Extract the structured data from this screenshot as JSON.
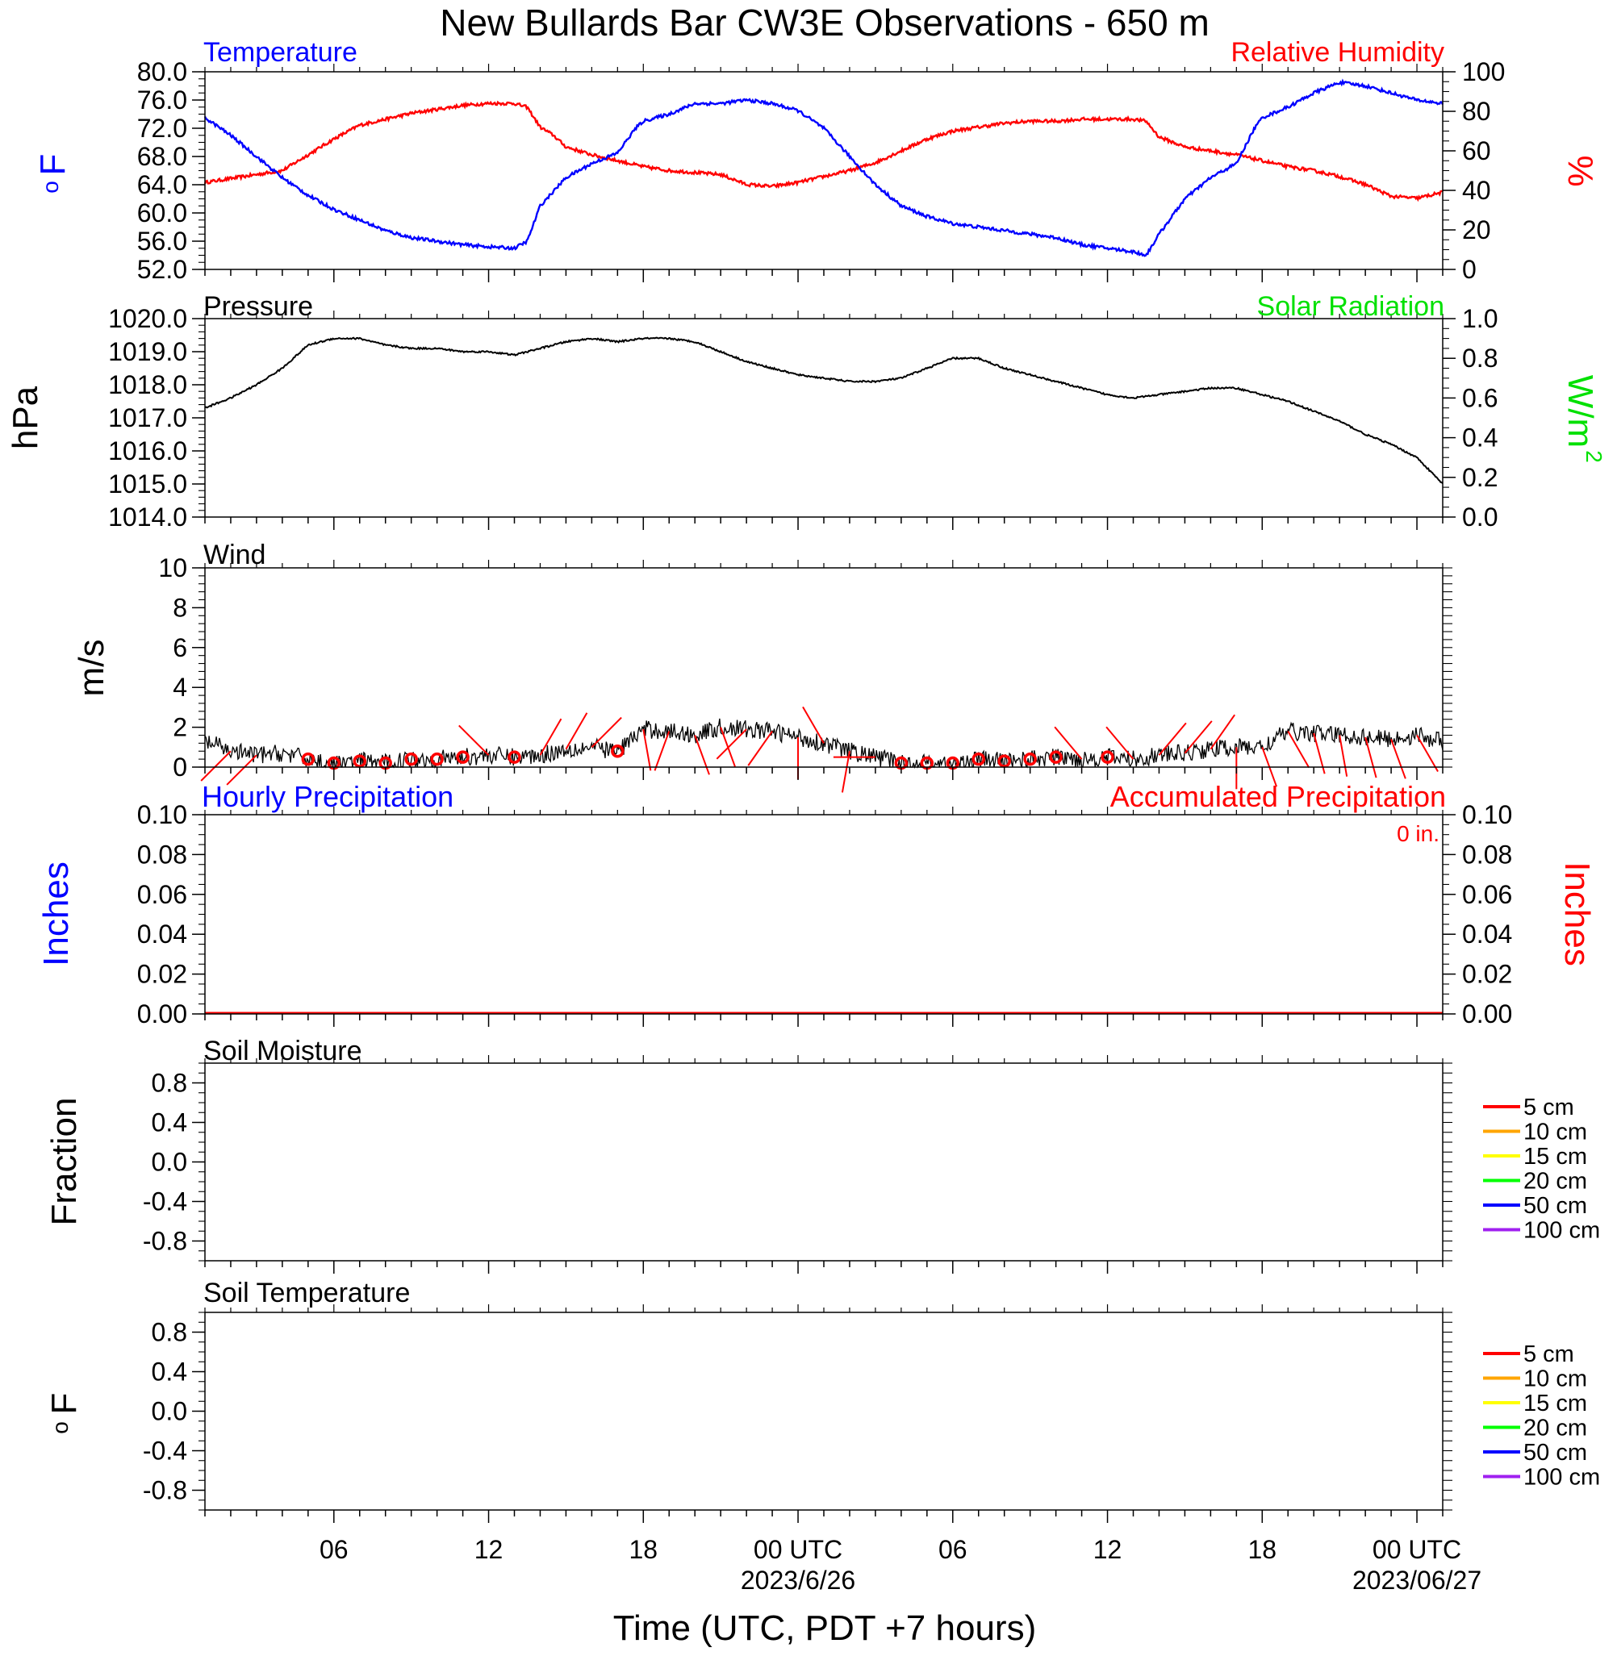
{
  "title": "New Bullards Bar CW3E Observations - 650 m",
  "xaxis": {
    "label": "Time (UTC, PDT +7 hours)",
    "ticks": [
      {
        "hour": 6,
        "label": "06",
        "date": ""
      },
      {
        "hour": 12,
        "label": "12",
        "date": ""
      },
      {
        "hour": 18,
        "label": "18",
        "date": ""
      },
      {
        "hour": 24,
        "label": "00 UTC",
        "date": "2023/6/26"
      },
      {
        "hour": 30,
        "label": "06",
        "date": ""
      },
      {
        "hour": 36,
        "label": "12",
        "date": ""
      },
      {
        "hour": 42,
        "label": "18",
        "date": ""
      },
      {
        "hour": 48,
        "label": "00 UTC",
        "date": "2023/06/27"
      }
    ],
    "range_hours": [
      1,
      49
    ]
  },
  "colors": {
    "temperature": "#0000ff",
    "humidity": "#ff0000",
    "solar": "#00e000",
    "pressure": "#000000",
    "wind": "#000000",
    "barb": "#ff0000",
    "hourly_precip": "#0000ff",
    "accum_precip": "#ff0000"
  },
  "panels": {
    "temp_rh": {
      "title_left": "Temperature",
      "title_right": "Relative Humidity",
      "ylabel_left": "F",
      "ylabel_left_sup": "o",
      "ylabel_right": "%",
      "yticks_left": [
        "52.0",
        "56.0",
        "60.0",
        "64.0",
        "68.0",
        "72.0",
        "76.0",
        "80.0"
      ],
      "yticks_right": [
        "0",
        "20",
        "40",
        "60",
        "80",
        "100"
      ]
    },
    "pressure": {
      "title_left": "Pressure",
      "title_right": "Solar Radiation",
      "ylabel_left": "hPa",
      "ylabel_right": "W/m",
      "ylabel_right_sup": "2",
      "yticks_left": [
        "1014.0",
        "1015.0",
        "1016.0",
        "1017.0",
        "1018.0",
        "1019.0",
        "1020.0"
      ],
      "yticks_right": [
        "0.0",
        "0.2",
        "0.4",
        "0.6",
        "0.8",
        "1.0"
      ]
    },
    "wind": {
      "title_left": "Wind",
      "ylabel_left": "m/s",
      "yticks_left": [
        "0",
        "2",
        "4",
        "6",
        "8",
        "10"
      ]
    },
    "precip": {
      "title_left": "Hourly Precipitation",
      "title_right": "Accumulated Precipitation",
      "accum_label": "0 in.",
      "ylabel_left": "Inches",
      "ylabel_right": "Inches",
      "yticks_left": [
        "0.00",
        "0.02",
        "0.04",
        "0.06",
        "0.08",
        "0.10"
      ],
      "yticks_right": [
        "0.00",
        "0.02",
        "0.04",
        "0.06",
        "0.08",
        "0.10"
      ]
    },
    "soil_moisture": {
      "title_left": "Soil Moisture",
      "ylabel_left": "Fraction",
      "yticks_left": [
        "-0.8",
        "-0.4",
        "0.0",
        "0.4",
        "0.8"
      ],
      "legend": [
        {
          "label": "5 cm",
          "color": "#ff0000"
        },
        {
          "label": "10 cm",
          "color": "#ffa500"
        },
        {
          "label": "15 cm",
          "color": "#ffff00"
        },
        {
          "label": "20 cm",
          "color": "#00ff00"
        },
        {
          "label": "50 cm",
          "color": "#0000ff"
        },
        {
          "label": "100 cm",
          "color": "#a020f0"
        }
      ]
    },
    "soil_temp": {
      "title_left": "Soil Temperature",
      "ylabel_left": "F",
      "ylabel_left_sup": "o",
      "yticks_left": [
        "-0.8",
        "-0.4",
        "0.0",
        "0.4",
        "0.8"
      ],
      "legend": [
        {
          "label": "5 cm",
          "color": "#ff0000"
        },
        {
          "label": "10 cm",
          "color": "#ffa500"
        },
        {
          "label": "15 cm",
          "color": "#ffff00"
        },
        {
          "label": "20 cm",
          "color": "#00ff00"
        },
        {
          "label": "50 cm",
          "color": "#0000ff"
        },
        {
          "label": "100 cm",
          "color": "#a020f0"
        }
      ]
    }
  },
  "chart_data": [
    {
      "type": "line",
      "title": "Temperature",
      "xlabel": "Time (UTC, PDT +7 hours)",
      "ylabel": "F",
      "ylim": [
        52,
        80
      ],
      "series": [
        {
          "name": "Temperature",
          "x": [
            1,
            2,
            3,
            4,
            5,
            6,
            7,
            8,
            9,
            10,
            11,
            12,
            13,
            13.5,
            14,
            15,
            16,
            17,
            17.7,
            18,
            19,
            20,
            21,
            22,
            23,
            24,
            25,
            26,
            27,
            28,
            29,
            30,
            31,
            32,
            33,
            34,
            35,
            36,
            37,
            37.5,
            38,
            39,
            40,
            41,
            41.7,
            42,
            43,
            44,
            45,
            46,
            47,
            48,
            49
          ],
          "y": [
            73.5,
            71,
            68,
            65,
            62.5,
            60.5,
            59,
            57.5,
            56.5,
            56,
            55.5,
            55.2,
            55,
            56,
            61,
            65,
            67,
            68.5,
            72,
            73,
            74,
            75.5,
            75.5,
            76,
            75.5,
            74.5,
            72,
            68,
            64,
            61,
            59.5,
            58.5,
            58,
            57.5,
            57,
            56.5,
            55.5,
            55,
            54.5,
            54,
            57,
            62,
            65,
            67,
            72,
            73.5,
            75,
            77,
            78.5,
            78,
            77,
            76,
            75.5
          ]
        }
      ]
    },
    {
      "type": "line",
      "title": "Relative Humidity",
      "ylabel": "%",
      "ylim": [
        0,
        100
      ],
      "series": [
        {
          "name": "Relative Humidity",
          "x": [
            1,
            2,
            3,
            4,
            5,
            6,
            7,
            8,
            9,
            10,
            11,
            12,
            13,
            13.5,
            14,
            14.5,
            15,
            16,
            17,
            18,
            19,
            20,
            21,
            22,
            23,
            24,
            25,
            26,
            27,
            28,
            29,
            30,
            31,
            32,
            33,
            34,
            35,
            36,
            37,
            37.5,
            38,
            39,
            40,
            41,
            42,
            43,
            44,
            45,
            46,
            47,
            48,
            49
          ],
          "y": [
            44,
            46,
            48,
            50,
            58,
            66,
            73,
            76,
            79,
            81,
            83,
            84,
            84,
            82,
            72,
            68,
            62,
            58,
            55,
            52,
            50,
            49,
            48,
            43,
            42,
            44,
            47,
            50,
            54,
            60,
            66,
            70,
            72,
            74,
            75,
            75,
            76,
            76,
            76,
            75,
            67,
            62,
            60,
            58,
            55,
            52,
            50,
            47,
            43,
            37,
            36,
            39
          ]
        }
      ]
    },
    {
      "type": "line",
      "title": "Pressure",
      "ylabel": "hPa",
      "ylim": [
        1014,
        1020
      ],
      "series": [
        {
          "name": "Pressure",
          "x": [
            1,
            2,
            3,
            4,
            5,
            6,
            7,
            8,
            9,
            10,
            11,
            12,
            13,
            14,
            15,
            16,
            17,
            18,
            19,
            20,
            21,
            22,
            23,
            24,
            25,
            26,
            27,
            28,
            29,
            30,
            31,
            32,
            33,
            34,
            35,
            36,
            37,
            38,
            39,
            40,
            41,
            42,
            43,
            44,
            45,
            46,
            47,
            48,
            49
          ],
          "y": [
            1017.3,
            1017.6,
            1018.0,
            1018.5,
            1019.2,
            1019.4,
            1019.4,
            1019.2,
            1019.1,
            1019.1,
            1019.0,
            1019.0,
            1018.9,
            1019.1,
            1019.3,
            1019.4,
            1019.3,
            1019.4,
            1019.4,
            1019.3,
            1019.0,
            1018.7,
            1018.5,
            1018.3,
            1018.2,
            1018.1,
            1018.1,
            1018.2,
            1018.5,
            1018.8,
            1018.8,
            1018.5,
            1018.3,
            1018.1,
            1017.9,
            1017.7,
            1017.6,
            1017.7,
            1017.8,
            1017.9,
            1017.9,
            1017.7,
            1017.5,
            1017.2,
            1016.9,
            1016.5,
            1016.2,
            1015.8,
            1015.0
          ]
        }
      ]
    },
    {
      "type": "line",
      "title": "Wind",
      "ylabel": "m/s",
      "ylim": [
        0,
        10
      ],
      "series": [
        {
          "name": "Wind speed",
          "x": [
            1,
            2,
            3,
            4,
            5,
            6,
            7,
            8,
            9,
            10,
            11,
            12,
            13,
            14,
            15,
            16,
            17,
            18,
            19,
            20,
            21,
            22,
            23,
            24,
            25,
            26,
            27,
            28,
            29,
            30,
            31,
            32,
            33,
            34,
            35,
            36,
            37,
            38,
            39,
            40,
            41,
            42,
            43,
            44,
            45,
            46,
            47,
            48,
            49
          ],
          "y": [
            1.3,
            0.8,
            0.6,
            0.7,
            0.4,
            0.1,
            0.3,
            0.2,
            0.4,
            0.4,
            0.5,
            0.6,
            0.5,
            0.6,
            0.9,
            1.0,
            0.8,
            1.9,
            1.8,
            1.6,
            2.0,
            1.9,
            1.8,
            1.5,
            1.2,
            0.8,
            0.5,
            0.2,
            0.2,
            0.1,
            0.4,
            0.3,
            0.4,
            0.5,
            0.4,
            0.5,
            0.4,
            0.6,
            0.7,
            0.9,
            1.0,
            1.0,
            1.8,
            1.7,
            1.6,
            1.5,
            1.4,
            1.6,
            1.3
          ]
        }
      ],
      "barbs": [
        {
          "hour": 2,
          "dir": 225
        },
        {
          "hour": 3,
          "dir": 225
        },
        {
          "hour": 5,
          "calm": true
        },
        {
          "hour": 6,
          "calm": true
        },
        {
          "hour": 7,
          "calm": true
        },
        {
          "hour": 8,
          "calm": true
        },
        {
          "hour": 9,
          "calm": true
        },
        {
          "hour": 10,
          "calm": true
        },
        {
          "hour": 11,
          "calm": true
        },
        {
          "hour": 12,
          "dir": 315
        },
        {
          "hour": 13,
          "calm": true
        },
        {
          "hour": 14,
          "dir": 30
        },
        {
          "hour": 15,
          "dir": 30
        },
        {
          "hour": 16,
          "dir": 45
        },
        {
          "hour": 17,
          "calm": true
        },
        {
          "hour": 18,
          "dir": 170
        },
        {
          "hour": 19,
          "dir": 200
        },
        {
          "hour": 20,
          "dir": 160
        },
        {
          "hour": 21,
          "dir": 160
        },
        {
          "hour": 22,
          "dir": 225
        },
        {
          "hour": 23,
          "dir": 215
        },
        {
          "hour": 24,
          "dir": 180
        },
        {
          "hour": 25,
          "dir": 330
        },
        {
          "hour": 26,
          "dir": 190
        },
        {
          "hour": 27,
          "dir": 270
        },
        {
          "hour": 28,
          "calm": true
        },
        {
          "hour": 29,
          "calm": true
        },
        {
          "hour": 30,
          "calm": true
        },
        {
          "hour": 31,
          "calm": true
        },
        {
          "hour": 32,
          "calm": true
        },
        {
          "hour": 33,
          "calm": true
        },
        {
          "hour": 34,
          "calm": true
        },
        {
          "hour": 35,
          "dir": 320
        },
        {
          "hour": 36,
          "calm": true
        },
        {
          "hour": 37,
          "dir": 320
        },
        {
          "hour": 38,
          "dir": 40
        },
        {
          "hour": 39,
          "dir": 40
        },
        {
          "hour": 40,
          "dir": 35
        },
        {
          "hour": 41,
          "dir": 180
        },
        {
          "hour": 42,
          "dir": 160
        },
        {
          "hour": 43,
          "dir": 150
        },
        {
          "hour": 44,
          "dir": 165
        },
        {
          "hour": 45,
          "dir": 170
        },
        {
          "hour": 46,
          "dir": 165
        },
        {
          "hour": 47,
          "dir": 160
        },
        {
          "hour": 48,
          "dir": 150
        }
      ]
    },
    {
      "type": "line",
      "title": "Hourly Precipitation",
      "ylabel": "Inches",
      "ylim": [
        0,
        0.1
      ],
      "series": [
        {
          "name": "Accumulated Precipitation",
          "x": [
            1,
            49
          ],
          "y": [
            0,
            0
          ]
        }
      ]
    },
    {
      "type": "line",
      "title": "Soil Moisture",
      "ylabel": "Fraction",
      "ylim": [
        -1,
        1
      ],
      "series": []
    },
    {
      "type": "line",
      "title": "Soil Temperature",
      "ylabel": "F",
      "ylim": [
        -1,
        1
      ],
      "series": []
    }
  ]
}
